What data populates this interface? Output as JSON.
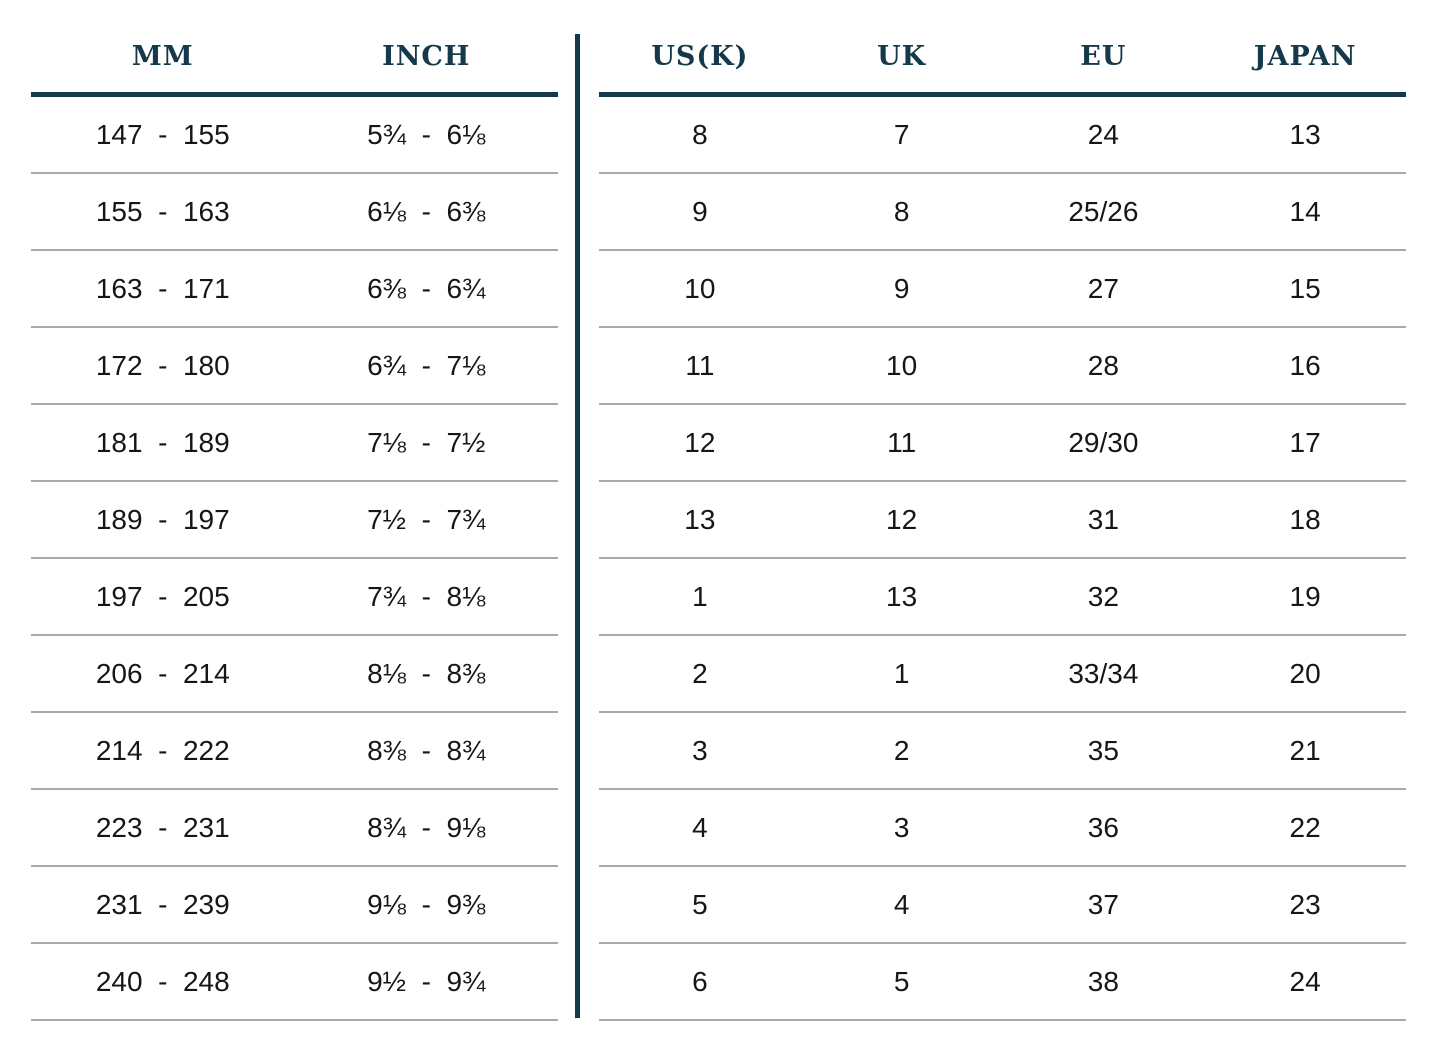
{
  "colors": {
    "accent_teal": "#14394a",
    "row_line_gray": "#a9a9a9",
    "data_text": "#161616",
    "background": "#ffffff"
  },
  "left_table": {
    "headers": [
      "MM",
      "INCH"
    ],
    "rows": [
      [
        "147  -  155",
        "5¾  -  6⅛"
      ],
      [
        "155  -  163",
        "6⅛  -  6⅜"
      ],
      [
        "163  -  171",
        "6⅜  -  6¾"
      ],
      [
        "172  -  180",
        "6¾  -  7⅛"
      ],
      [
        "181  -  189",
        "7⅛  -  7½"
      ],
      [
        "189  -  197",
        "7½  -  7¾"
      ],
      [
        "197  -  205",
        "7¾  -  8⅛"
      ],
      [
        "206  -  214",
        "8⅛  -  8⅜"
      ],
      [
        "214  -  222",
        "8⅜  -  8¾"
      ],
      [
        "223  -  231",
        "8¾  -  9⅛"
      ],
      [
        "231  -  239",
        "9⅛  -  9⅜"
      ],
      [
        "240  -  248",
        "9½  -  9¾"
      ]
    ]
  },
  "right_table": {
    "headers": [
      "US(K)",
      "UK",
      "EU",
      "JAPAN"
    ],
    "rows": [
      [
        "8",
        "7",
        "24",
        "13"
      ],
      [
        "9",
        "8",
        "25/26",
        "14"
      ],
      [
        "10",
        "9",
        "27",
        "15"
      ],
      [
        "11",
        "10",
        "28",
        "16"
      ],
      [
        "12",
        "11",
        "29/30",
        "17"
      ],
      [
        "13",
        "12",
        "31",
        "18"
      ],
      [
        "1",
        "13",
        "32",
        "19"
      ],
      [
        "2",
        "1",
        "33/34",
        "20"
      ],
      [
        "3",
        "2",
        "35",
        "21"
      ],
      [
        "4",
        "3",
        "36",
        "22"
      ],
      [
        "5",
        "4",
        "37",
        "23"
      ],
      [
        "6",
        "5",
        "38",
        "24"
      ]
    ]
  }
}
